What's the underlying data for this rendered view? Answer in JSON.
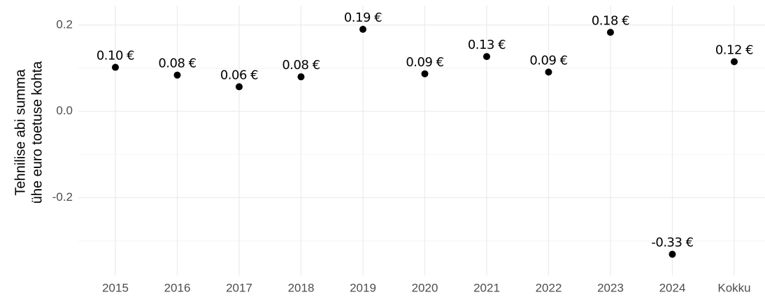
{
  "chart_data": {
    "type": "scatter",
    "ylabel": [
      "Tehnilise abi summa",
      "ühe euro toetuse kohta"
    ],
    "categories": [
      "2015",
      "2016",
      "2017",
      "2018",
      "2019",
      "2020",
      "2021",
      "2022",
      "2023",
      "2024",
      "Kokku"
    ],
    "values": [
      0.102,
      0.084,
      0.057,
      0.08,
      0.19,
      0.087,
      0.127,
      0.091,
      0.183,
      -0.331,
      0.115
    ],
    "value_labels": [
      "0.10 €",
      "0.08 €",
      "0.06 €",
      "0.08 €",
      "0.19 €",
      "0.09 €",
      "0.13 €",
      "0.09 €",
      "0.18 €",
      "-0.33 €",
      "0.12 €"
    ],
    "color": "#000000",
    "ylim": [
      -0.38,
      0.245
    ],
    "yticks": [
      0.2,
      {
        "value": 0,
        "label": "0.0"
      },
      -0.2
    ],
    "minor_yticks": [
      0.1,
      -0.1,
      -0.3
    ],
    "grid": true
  }
}
